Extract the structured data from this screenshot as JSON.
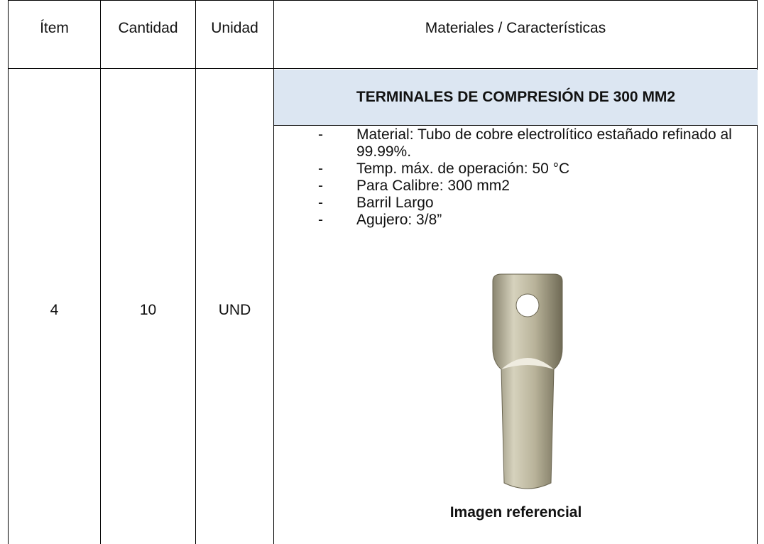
{
  "table": {
    "header": [
      "Ítem",
      "Cantidad",
      "Unidad",
      "Materiales / Características"
    ],
    "row": [
      "4",
      "10",
      "UND"
    ],
    "spec_title": "TERMINALES DE COMPRESIÓN DE 300 MM2",
    "items": [
      "Material: Tubo de cobre electrolítico estañado refinado al 99.99%.",
      "Temp. máx. de operación: 50 °C",
      "Para Calibre: 300 mm2",
      "Barril Largo",
      "Agujero: 3/8”"
    ],
    "caption": "Imagen referencial"
  }
}
